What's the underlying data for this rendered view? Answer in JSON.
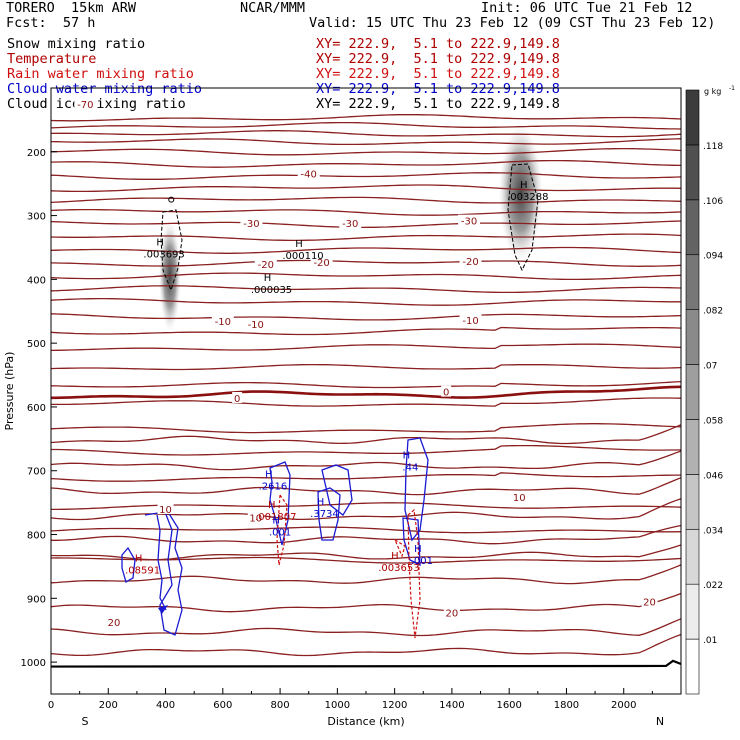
{
  "header": {
    "model": "TORERO  15km ARW",
    "org": "NCAR/MMM",
    "init": "Init: 06 UTC Tue 21 Feb 12",
    "fcst": "Fcst:  57 h",
    "valid": "Valid: 15 UTC Thu 23 Feb 12 (09 CST Thu 23 Feb 12)"
  },
  "legend": [
    {
      "label": "Snow mixing ratio",
      "xy": "XY= 222.9,  5.1 to 222.9,149.8",
      "color": "#000000"
    },
    {
      "label": "Temperature",
      "xy": "XY= 222.9,  5.1 to 222.9,149.8",
      "color": "#b00000"
    },
    {
      "label": "Rain water mixing ratio",
      "xy": "XY= 222.9,  5.1 to 222.9,149.8",
      "color": "#d01010"
    },
    {
      "label": "Cloud water mixing ratio",
      "xy": "XY= 222.9,  5.1 to 222.9,149.8",
      "color": "#0000c8"
    },
    {
      "label": "Cloud ice mixing ratio",
      "xy": "XY= 222.9,  5.1 to 222.9,149.8",
      "color": "#000000"
    }
  ],
  "chart_data": {
    "type": "cross-section",
    "xlabel": "Distance (km)",
    "ylabel": "Pressure (hPa)",
    "xlim": [
      0,
      2200
    ],
    "ylim": [
      1050,
      100
    ],
    "x_ticks": [
      0,
      200,
      400,
      600,
      800,
      1000,
      1200,
      1400,
      1600,
      1800,
      2000
    ],
    "y_ticks": [
      200,
      300,
      400,
      500,
      600,
      700,
      800,
      900,
      1000
    ],
    "x_end_labels": {
      "left": "S",
      "right": "N"
    },
    "colorbar": {
      "unit": "g kg",
      "unit_exp": "-1",
      "ticks": [
        ".01",
        ".022",
        ".034",
        ".046",
        ".058",
        ".07",
        ".082",
        ".094",
        ".106",
        ".118"
      ]
    },
    "temperature_contours": [
      {
        "label": "-70",
        "x": 120,
        "p": 125
      },
      {
        "label": "-40",
        "x": 900,
        "p": 234
      },
      {
        "label": "-30",
        "x": 700,
        "p": 312
      },
      {
        "label": "-30",
        "x": 1045,
        "p": 312
      },
      {
        "label": "-30",
        "x": 1460,
        "p": 308
      },
      {
        "label": "-20",
        "x": 750,
        "p": 376
      },
      {
        "label": "-20",
        "x": 945,
        "p": 373
      },
      {
        "label": "-20",
        "x": 1465,
        "p": 371
      },
      {
        "label": "-10",
        "x": 600,
        "p": 465
      },
      {
        "label": "-10",
        "x": 715,
        "p": 470
      },
      {
        "label": "-10",
        "x": 1465,
        "p": 464
      },
      {
        "label": "0",
        "x": 650,
        "p": 586
      },
      {
        "label": "0",
        "x": 1380,
        "p": 576
      },
      {
        "label": "10",
        "x": 400,
        "p": 760
      },
      {
        "label": "10",
        "x": 715,
        "p": 773
      },
      {
        "label": "10",
        "x": 1635,
        "p": 741
      },
      {
        "label": "20",
        "x": 220,
        "p": 937
      },
      {
        "label": "20",
        "x": 1400,
        "p": 922
      },
      {
        "label": "20",
        "x": 2090,
        "p": 905
      }
    ],
    "maxima": [
      {
        "label": "H",
        "value": ".003693",
        "x": 395,
        "p": 356,
        "color": "#000000"
      },
      {
        "label": "H",
        "value": ".000110",
        "x": 880,
        "p": 359,
        "color": "#000000"
      },
      {
        "label": "H",
        "value": ".000035",
        "x": 770,
        "p": 412,
        "color": "#000000"
      },
      {
        "label": "H",
        "value": ".003288",
        "x": 1665,
        "p": 266,
        "color": "#000000"
      },
      {
        "label": "H",
        "value": ".2616",
        "x": 775,
        "p": 720,
        "color": "#0000c8"
      },
      {
        "label": "H",
        "value": ".001807",
        "x": 785,
        "p": 768,
        "color": "#b00000"
      },
      {
        "label": "H",
        "value": ".001",
        "x": 800,
        "p": 792,
        "color": "#0000c8"
      },
      {
        "label": "H",
        "value": ".3734",
        "x": 955,
        "p": 763,
        "color": "#0000c8"
      },
      {
        "label": "H",
        "value": ".44",
        "x": 1255,
        "p": 690,
        "color": "#0000c8"
      },
      {
        "label": "H",
        "value": ".001",
        "x": 1295,
        "p": 837,
        "color": "#0000c8"
      },
      {
        "label": "H",
        "value": ".003653",
        "x": 1215,
        "p": 848,
        "color": "#b00000"
      },
      {
        "label": "H",
        "value": ".08591",
        "x": 320,
        "p": 852,
        "color": "#b00000"
      }
    ]
  }
}
